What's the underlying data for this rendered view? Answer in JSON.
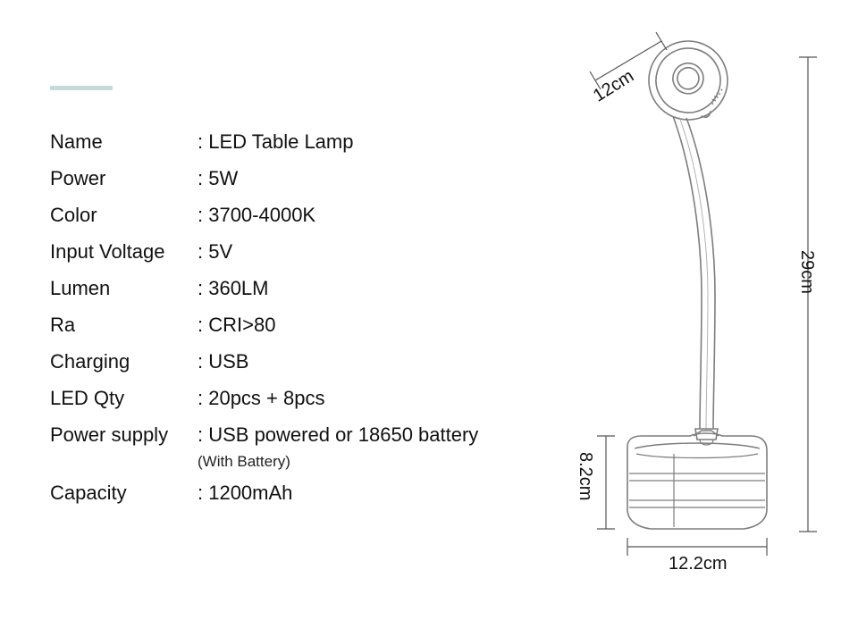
{
  "accent_bar_color": "#c8d8d6",
  "specs": [
    {
      "label": "Name",
      "value": "LED Table Lamp"
    },
    {
      "label": "Power",
      "value": "5W"
    },
    {
      "label": "Color",
      "value": "3700-4000K"
    },
    {
      "label": "Input Voltage",
      "value": "5V"
    },
    {
      "label": "Lumen",
      "value": "360LM"
    },
    {
      "label": "Ra",
      "value": "CRI>80"
    },
    {
      "label": "Charging",
      "value": "USB"
    },
    {
      "label": "LED Qty",
      "value": "20pcs + 8pcs"
    },
    {
      "label": "Power supply",
      "value": "USB powered or 18650 battery",
      "subvalue": "(With Battery)"
    },
    {
      "label": "Capacity",
      "value": "1200mAh"
    }
  ],
  "dimensions": {
    "head_length": "12cm",
    "full_height": "29cm",
    "base_height": "8.2cm",
    "base_width": "12.2cm"
  },
  "diagram_style": {
    "stroke": "#7d7d7d",
    "stroke_width": 1.6,
    "dim_line_stroke": "#555555",
    "dim_line_width": 1.2,
    "fill": "none",
    "bg": "#ffffff"
  }
}
